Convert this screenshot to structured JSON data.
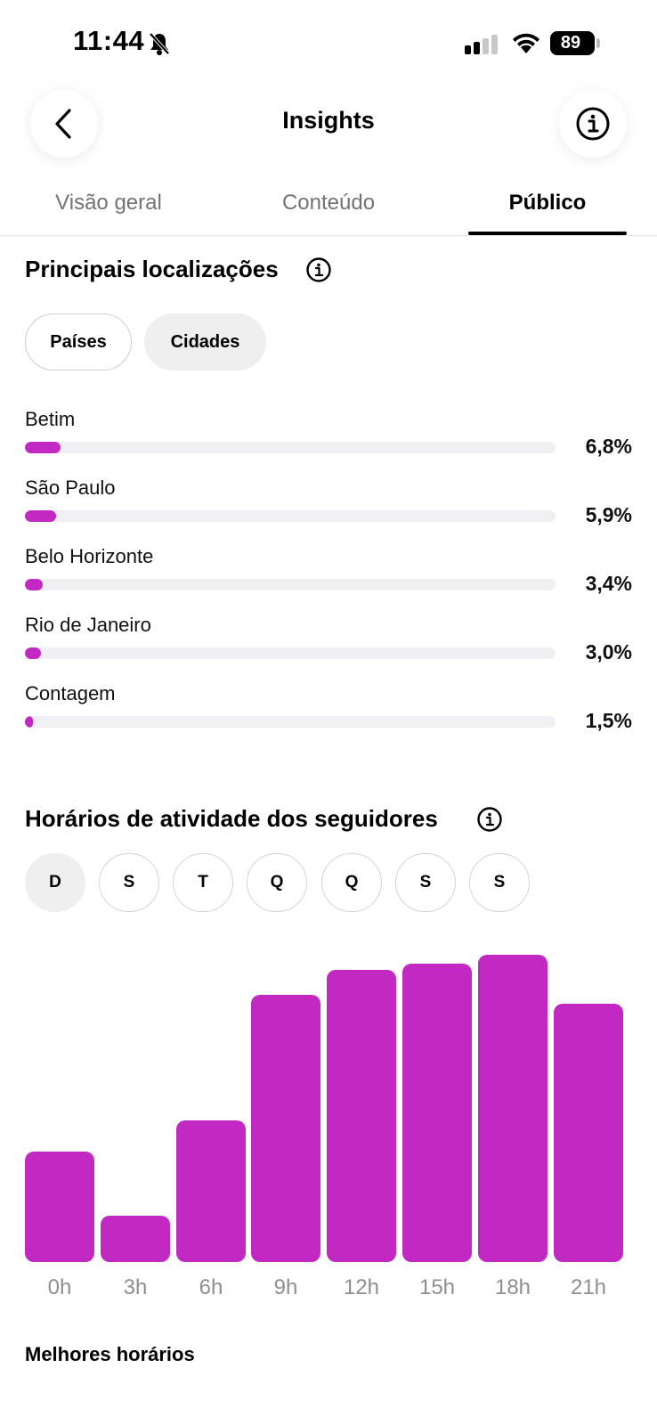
{
  "status_bar": {
    "time": "11:44",
    "battery": "89"
  },
  "header": {
    "title": "Insights"
  },
  "tabs": [
    {
      "label": "Visão geral"
    },
    {
      "label": "Conteúdo"
    },
    {
      "label": "Público",
      "active": true
    }
  ],
  "locations": {
    "title": "Principais localizações",
    "filters": [
      {
        "label": "Países",
        "selected": false
      },
      {
        "label": "Cidades",
        "selected": true
      }
    ],
    "items": [
      {
        "name": "Betim",
        "percent_label": "6,8%",
        "value": 6.8
      },
      {
        "name": "São Paulo",
        "percent_label": "5,9%",
        "value": 5.9
      },
      {
        "name": "Belo Horizonte",
        "percent_label": "3,4%",
        "value": 3.4
      },
      {
        "name": "Rio de Janeiro",
        "percent_label": "3,0%",
        "value": 3.0
      },
      {
        "name": "Contagem",
        "percent_label": "1,5%",
        "value": 1.5
      }
    ]
  },
  "activity": {
    "title": "Horários de atividade dos seguidores",
    "days": [
      {
        "label": "D",
        "active": true
      },
      {
        "label": "S",
        "active": false
      },
      {
        "label": "T",
        "active": false
      },
      {
        "label": "Q",
        "active": false
      },
      {
        "label": "Q",
        "active": false
      },
      {
        "label": "S",
        "active": false
      },
      {
        "label": "S",
        "active": false
      }
    ],
    "best_times_title": "Melhores horários"
  },
  "chart_data": {
    "type": "bar",
    "categories": [
      "0h",
      "3h",
      "6h",
      "9h",
      "12h",
      "15h",
      "18h",
      "21h"
    ],
    "values": [
      36,
      15,
      46,
      87,
      95,
      97,
      100,
      84
    ],
    "ylim": [
      0,
      100
    ],
    "grid": false,
    "color": "#c229c3"
  },
  "colors": {
    "accent": "#c229c3",
    "track": "#f0f0f4"
  }
}
